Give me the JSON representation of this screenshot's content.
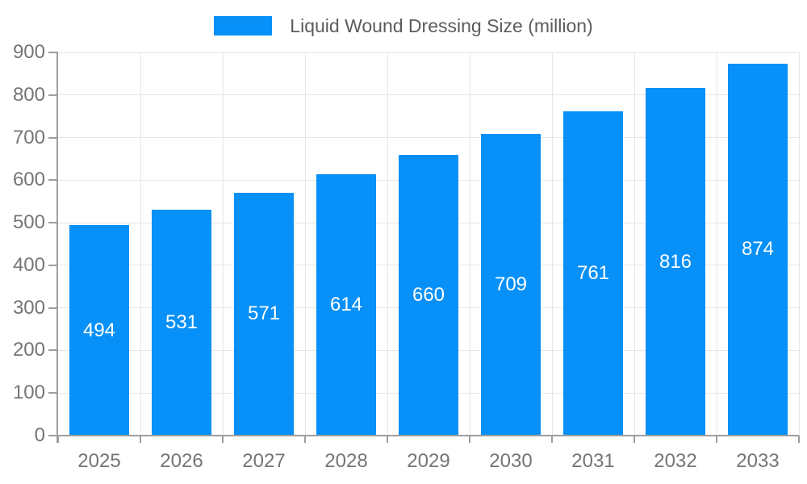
{
  "legend": {
    "label": "Liquid Wound Dressing Size (million)"
  },
  "chart_data": {
    "type": "bar",
    "title": "Liquid Wound Dressing Size (million)",
    "categories": [
      "2025",
      "2026",
      "2027",
      "2028",
      "2029",
      "2030",
      "2031",
      "2032",
      "2033"
    ],
    "series": [
      {
        "name": "Liquid Wound Dressing Size (million)",
        "values": [
          494,
          531,
          571,
          614,
          660,
          709,
          761,
          816,
          874
        ]
      }
    ],
    "xlabel": "",
    "ylabel": "",
    "ylim": [
      0,
      900
    ],
    "yticks": [
      0,
      100,
      200,
      300,
      400,
      500,
      600,
      700,
      800,
      900
    ],
    "grid": true,
    "legend_position": "top",
    "value_labels_shown": true
  },
  "colors": {
    "bar": "#0790f7",
    "value_label": "#ffffff",
    "axis_text": "#757575",
    "legend_text": "#5c5c5c",
    "gridline": "#e6e6e6",
    "axis_line": "#9e9e9e",
    "background": "#ffffff"
  }
}
